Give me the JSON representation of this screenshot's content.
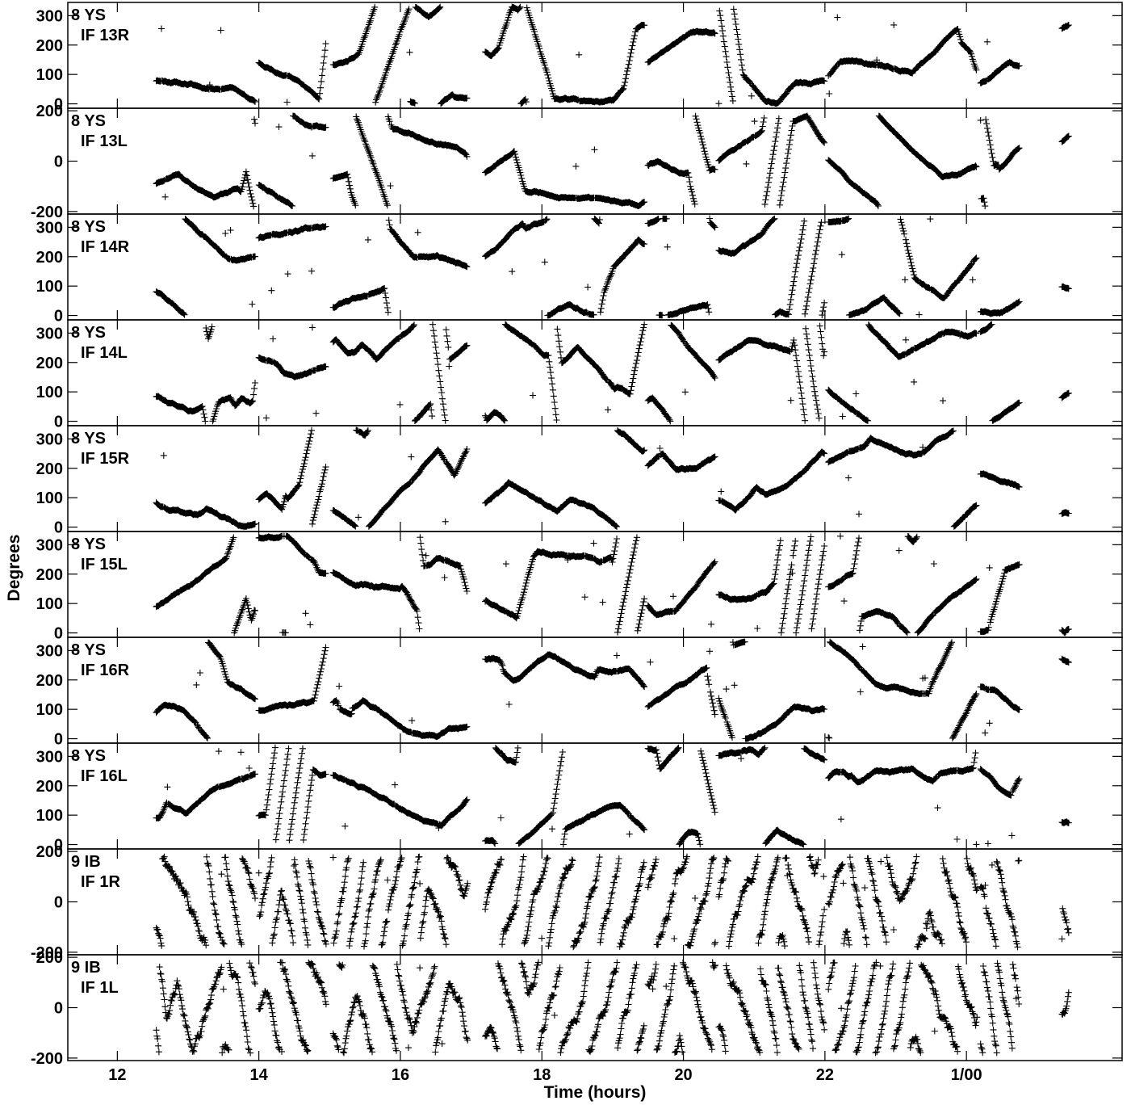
{
  "chart_data": {
    "type": "scatter",
    "marker": "plus",
    "color": "#000000",
    "xlabel": "Time (hours)",
    "ylabel": "Degrees",
    "xlim": [
      11.3,
      26.2
    ],
    "xticks": [
      {
        "value": 12,
        "label": "12"
      },
      {
        "value": 14,
        "label": "14"
      },
      {
        "value": 16,
        "label": "16"
      },
      {
        "value": 18,
        "label": "18"
      },
      {
        "value": 20,
        "label": "20"
      },
      {
        "value": 22,
        "label": "22"
      },
      {
        "value": 24,
        "label": "1/00"
      }
    ],
    "scan_ranges": [
      [
        12.55,
        13.95
      ],
      [
        14.0,
        14.95
      ],
      [
        15.05,
        16.95
      ],
      [
        17.2,
        19.45
      ],
      [
        19.5,
        20.45
      ],
      [
        20.5,
        22.0
      ],
      [
        22.05,
        24.15
      ],
      [
        24.2,
        24.75
      ],
      [
        25.35,
        25.45
      ]
    ],
    "panels": [
      {
        "label1": "8 YS",
        "label2": "IF 13R",
        "ylim": [
          -15,
          345
        ],
        "yticks": [
          0,
          100,
          200,
          300
        ],
        "wrap": [
          0,
          330
        ],
        "pattern": "smooth",
        "seed": 13
      },
      {
        "label1": "8 YS",
        "label2": "IF 13L",
        "ylim": [
          -210,
          210
        ],
        "yticks": [
          -200,
          0,
          200
        ],
        "wrap": [
          -180,
          180
        ],
        "pattern": "smooth",
        "seed": 27
      },
      {
        "label1": "8 YS",
        "label2": "IF 14R",
        "ylim": [
          -15,
          345
        ],
        "yticks": [
          0,
          100,
          200,
          300
        ],
        "wrap": [
          0,
          330
        ],
        "pattern": "smooth",
        "seed": 31
      },
      {
        "label1": "8 YS",
        "label2": "IF 14L",
        "ylim": [
          -15,
          345
        ],
        "yticks": [
          0,
          100,
          200,
          300
        ],
        "wrap": [
          0,
          330
        ],
        "pattern": "smooth",
        "seed": 47
      },
      {
        "label1": "8 YS",
        "label2": "IF 15R",
        "ylim": [
          -15,
          345
        ],
        "yticks": [
          0,
          100,
          200,
          300
        ],
        "wrap": [
          0,
          330
        ],
        "pattern": "smooth",
        "seed": 53
      },
      {
        "label1": "8 YS",
        "label2": "IF 15L",
        "ylim": [
          -15,
          345
        ],
        "yticks": [
          0,
          100,
          200,
          300
        ],
        "wrap": [
          0,
          330
        ],
        "pattern": "smooth",
        "seed": 61
      },
      {
        "label1": "8 YS",
        "label2": "IF 16R",
        "ylim": [
          -15,
          345
        ],
        "yticks": [
          0,
          100,
          200,
          300
        ],
        "wrap": [
          0,
          330
        ],
        "pattern": "smooth",
        "seed": 73
      },
      {
        "label1": "8 YS",
        "label2": "IF 16L",
        "ylim": [
          -15,
          345
        ],
        "yticks": [
          0,
          100,
          200,
          300
        ],
        "wrap": [
          0,
          330
        ],
        "pattern": "smooth",
        "seed": 89
      },
      {
        "label1": "9 IB",
        "label2": "IF 1R",
        "ylim": [
          -210,
          210
        ],
        "yticks": [
          -200,
          0,
          200
        ],
        "wrap": [
          -180,
          180
        ],
        "pattern": "noisy",
        "seed": 97
      },
      {
        "label1": "9 IB",
        "label2": "IF 1L",
        "ylim": [
          -210,
          210
        ],
        "yticks": [
          -200,
          0,
          200
        ],
        "wrap": [
          -180,
          180
        ],
        "pattern": "noisy",
        "seed": 101
      }
    ]
  }
}
